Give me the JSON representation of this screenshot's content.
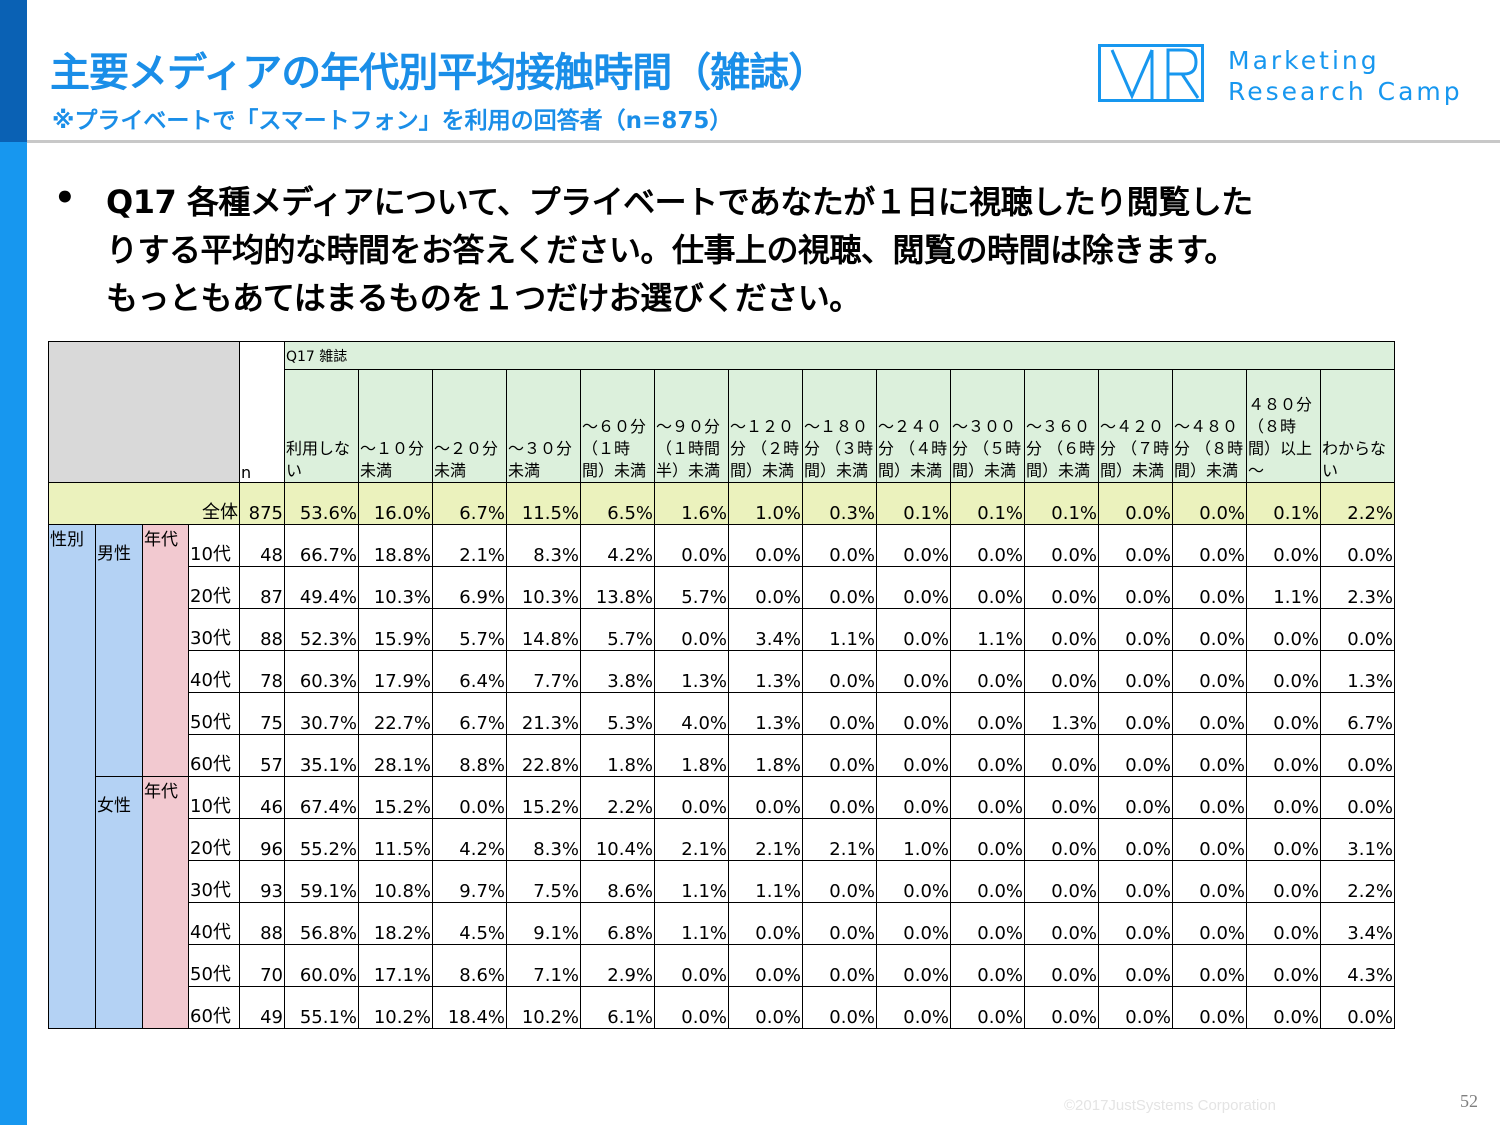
{
  "header": {
    "title": "主要メディアの年代別平均接触時間（雑誌）",
    "subtitle": "※プライベートで「スマートフォン」を利用の回答者（n=875）"
  },
  "logo": {
    "mark_text": "MR",
    "line1": "Marketing",
    "line2": "Research Camp",
    "color": "#1797ef"
  },
  "question": {
    "bullet": "•",
    "lines": [
      "Q17 各種メディアについて、プライベートであなたが１日に視聴したり閲覧した",
      "りする平均的な時間をお答えください。仕事上の視聴、閲覧の時間は除きます。",
      "もっともあてはまるものを１つだけお選びください。"
    ]
  },
  "table": {
    "q_label": "Q17 雑誌",
    "n_label": "n",
    "columns": [
      "利用しない",
      "～１０分未満",
      "～２０分未満",
      "～３０分未満",
      "～６０分（１時間）未満",
      "～９０分（１時間半）未満",
      "～１２０分 （２時間）未満",
      "～１８０分 （３時間）未満",
      "～２４０分 （４時間）未満",
      "～３００分 （５時間）未満",
      "～３６０分 （６時間）未満",
      "～４２０分 （７時間）未満",
      "～４８０分 （８時間）未満",
      "４８０分（８時間）以上～",
      "わからない"
    ],
    "sex_label": "性別",
    "nendai_label": "年代",
    "total": {
      "label": "全体",
      "n": "875",
      "values": [
        "53.6%",
        "16.0%",
        "6.7%",
        "11.5%",
        "6.5%",
        "1.6%",
        "1.0%",
        "0.3%",
        "0.1%",
        "0.1%",
        "0.1%",
        "0.0%",
        "0.0%",
        "0.1%",
        "2.2%"
      ]
    },
    "groups": [
      {
        "gender": "男性",
        "rows": [
          {
            "age": "10代",
            "n": "48",
            "values": [
              "66.7%",
              "18.8%",
              "2.1%",
              "8.3%",
              "4.2%",
              "0.0%",
              "0.0%",
              "0.0%",
              "0.0%",
              "0.0%",
              "0.0%",
              "0.0%",
              "0.0%",
              "0.0%",
              "0.0%"
            ]
          },
          {
            "age": "20代",
            "n": "87",
            "values": [
              "49.4%",
              "10.3%",
              "6.9%",
              "10.3%",
              "13.8%",
              "5.7%",
              "0.0%",
              "0.0%",
              "0.0%",
              "0.0%",
              "0.0%",
              "0.0%",
              "0.0%",
              "1.1%",
              "2.3%"
            ]
          },
          {
            "age": "30代",
            "n": "88",
            "values": [
              "52.3%",
              "15.9%",
              "5.7%",
              "14.8%",
              "5.7%",
              "0.0%",
              "3.4%",
              "1.1%",
              "0.0%",
              "1.1%",
              "0.0%",
              "0.0%",
              "0.0%",
              "0.0%",
              "0.0%"
            ]
          },
          {
            "age": "40代",
            "n": "78",
            "values": [
              "60.3%",
              "17.9%",
              "6.4%",
              "7.7%",
              "3.8%",
              "1.3%",
              "1.3%",
              "0.0%",
              "0.0%",
              "0.0%",
              "0.0%",
              "0.0%",
              "0.0%",
              "0.0%",
              "1.3%"
            ]
          },
          {
            "age": "50代",
            "n": "75",
            "values": [
              "30.7%",
              "22.7%",
              "6.7%",
              "21.3%",
              "5.3%",
              "4.0%",
              "1.3%",
              "0.0%",
              "0.0%",
              "0.0%",
              "1.3%",
              "0.0%",
              "0.0%",
              "0.0%",
              "6.7%"
            ]
          },
          {
            "age": "60代",
            "n": "57",
            "values": [
              "35.1%",
              "28.1%",
              "8.8%",
              "22.8%",
              "1.8%",
              "1.8%",
              "1.8%",
              "0.0%",
              "0.0%",
              "0.0%",
              "0.0%",
              "0.0%",
              "0.0%",
              "0.0%",
              "0.0%"
            ]
          }
        ]
      },
      {
        "gender": "女性",
        "rows": [
          {
            "age": "10代",
            "n": "46",
            "values": [
              "67.4%",
              "15.2%",
              "0.0%",
              "15.2%",
              "2.2%",
              "0.0%",
              "0.0%",
              "0.0%",
              "0.0%",
              "0.0%",
              "0.0%",
              "0.0%",
              "0.0%",
              "0.0%",
              "0.0%"
            ]
          },
          {
            "age": "20代",
            "n": "96",
            "values": [
              "55.2%",
              "11.5%",
              "4.2%",
              "8.3%",
              "10.4%",
              "2.1%",
              "2.1%",
              "2.1%",
              "1.0%",
              "0.0%",
              "0.0%",
              "0.0%",
              "0.0%",
              "0.0%",
              "3.1%"
            ]
          },
          {
            "age": "30代",
            "n": "93",
            "values": [
              "59.1%",
              "10.8%",
              "9.7%",
              "7.5%",
              "8.6%",
              "1.1%",
              "1.1%",
              "0.0%",
              "0.0%",
              "0.0%",
              "0.0%",
              "0.0%",
              "0.0%",
              "0.0%",
              "2.2%"
            ]
          },
          {
            "age": "40代",
            "n": "88",
            "values": [
              "56.8%",
              "18.2%",
              "4.5%",
              "9.1%",
              "6.8%",
              "1.1%",
              "0.0%",
              "0.0%",
              "0.0%",
              "0.0%",
              "0.0%",
              "0.0%",
              "0.0%",
              "0.0%",
              "3.4%"
            ]
          },
          {
            "age": "50代",
            "n": "70",
            "values": [
              "60.0%",
              "17.1%",
              "8.6%",
              "7.1%",
              "2.9%",
              "0.0%",
              "0.0%",
              "0.0%",
              "0.0%",
              "0.0%",
              "0.0%",
              "0.0%",
              "0.0%",
              "0.0%",
              "4.3%"
            ]
          },
          {
            "age": "60代",
            "n": "49",
            "values": [
              "55.1%",
              "10.2%",
              "18.4%",
              "10.2%",
              "6.1%",
              "0.0%",
              "0.0%",
              "0.0%",
              "0.0%",
              "0.0%",
              "0.0%",
              "0.0%",
              "0.0%",
              "0.0%",
              "0.0%"
            ]
          }
        ]
      }
    ]
  },
  "footer": {
    "copyright": "©2017JustSystems Corporation",
    "page_number": "52"
  }
}
